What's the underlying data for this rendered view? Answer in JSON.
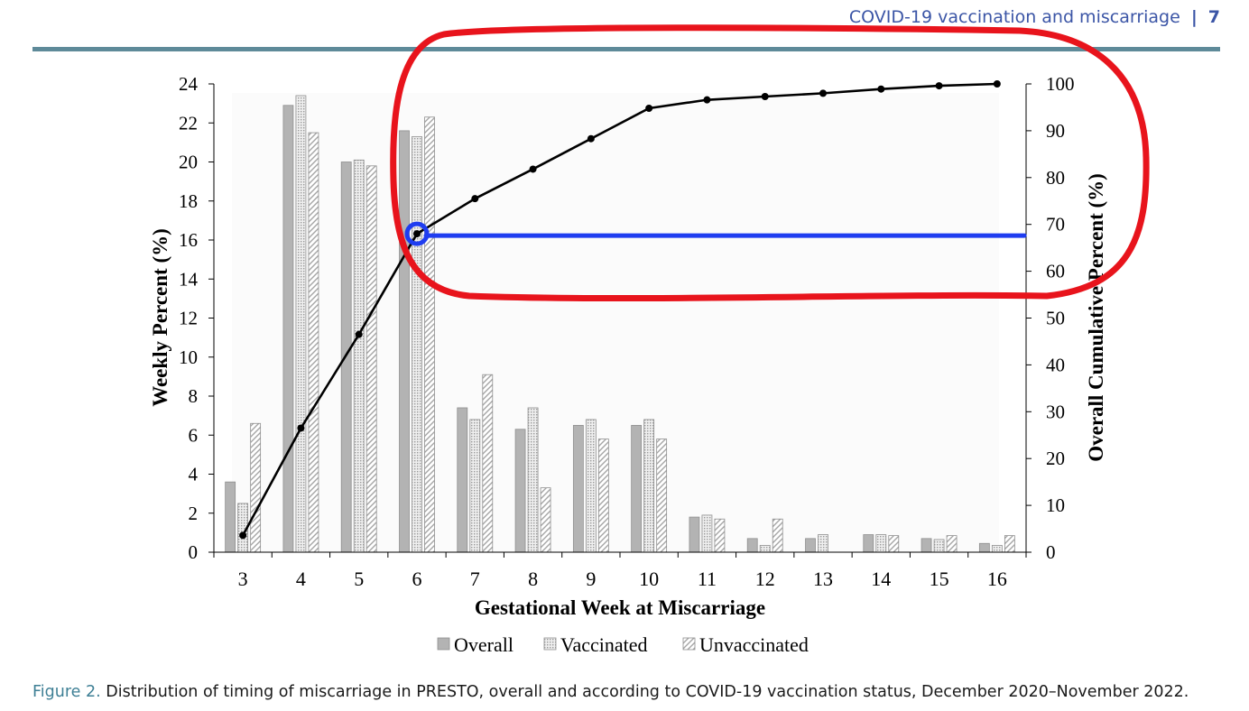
{
  "header": {
    "running_title": "COVID-19 vaccination and miscarriage",
    "separator": "|",
    "page_number": "7"
  },
  "caption": {
    "label": "Figure 2.",
    "text": "Distribution of timing of miscarriage in PRESTO, overall and according to COVID-19 vaccination status, December 2020–November 2022."
  },
  "colors": {
    "header_text": "#3b55a6",
    "rule": "#5e8a99",
    "caption_label": "#3e7f95",
    "annotation_red": "#e8141c",
    "annotation_blue": "#1f3df0"
  },
  "chart_data": {
    "type": "bar",
    "xlabel": "Gestational Week at Miscarriage",
    "ylabel": "Weekly Percent (%)",
    "y2label": "Overall Cumulative Percent (%)",
    "categories": [
      "3",
      "4",
      "5",
      "6",
      "7",
      "8",
      "9",
      "10",
      "11",
      "12",
      "13",
      "14",
      "15",
      "16"
    ],
    "ylim": [
      0,
      24
    ],
    "yticks": [
      0,
      2,
      4,
      6,
      8,
      10,
      12,
      14,
      16,
      18,
      20,
      22,
      24
    ],
    "y2lim": [
      0,
      100
    ],
    "y2ticks": [
      0,
      10,
      20,
      30,
      40,
      50,
      60,
      70,
      80,
      90,
      100
    ],
    "grid": false,
    "legend_position": "bottom",
    "series": [
      {
        "name": "Overall",
        "kind": "bar",
        "pattern": "solid",
        "values": [
          3.6,
          22.9,
          20.0,
          21.6,
          7.4,
          6.3,
          6.5,
          6.5,
          1.8,
          0.7,
          0.7,
          0.9,
          0.7,
          0.45
        ]
      },
      {
        "name": "Vaccinated",
        "kind": "bar",
        "pattern": "dotted",
        "values": [
          2.5,
          23.4,
          20.1,
          21.3,
          6.8,
          7.4,
          6.8,
          6.8,
          1.9,
          0.35,
          0.9,
          0.9,
          0.65,
          0.35
        ]
      },
      {
        "name": "Unvaccinated",
        "kind": "bar",
        "pattern": "hatched",
        "values": [
          6.6,
          21.5,
          19.8,
          22.3,
          9.1,
          3.3,
          5.8,
          5.8,
          1.7,
          1.7,
          0,
          0.85,
          0.85,
          0.85
        ]
      },
      {
        "kind": "line",
        "axis": "right",
        "values": [
          3.6,
          26.5,
          46.5,
          68.0,
          75.5,
          81.8,
          88.3,
          94.8,
          96.6,
          97.3,
          98.0,
          98.9,
          99.6,
          100.0
        ]
      }
    ],
    "annotations": [
      {
        "type": "ellipse",
        "color": "red",
        "around": "cumulative line, weeks 6–16"
      },
      {
        "type": "circle",
        "color": "blue",
        "at_category": "6"
      },
      {
        "type": "horizontal-line",
        "color": "blue",
        "from_category": "6",
        "y2_value": 68.0
      }
    ]
  }
}
